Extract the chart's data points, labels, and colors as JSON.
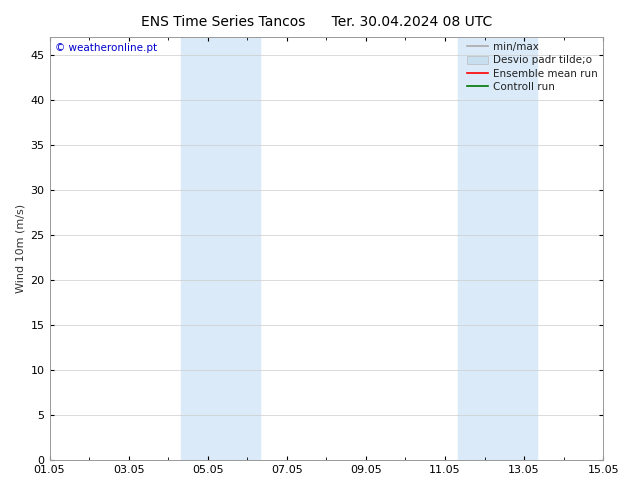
{
  "title_left": "ENS Time Series Tancos",
  "title_right": "Ter. 30.04.2024 08 UTC",
  "ylabel": "Wind 10m (m/s)",
  "watermark": "© weatheronline.pt",
  "watermark_color": "#0000cc",
  "ylim": [
    0,
    47
  ],
  "yticks": [
    0,
    5,
    10,
    15,
    20,
    25,
    30,
    35,
    40,
    45
  ],
  "xtick_labels": [
    "01.05",
    "03.05",
    "05.05",
    "07.05",
    "09.05",
    "11.05",
    "13.05",
    "15.05"
  ],
  "xtick_positions": [
    0,
    2,
    4,
    6,
    8,
    10,
    12,
    14
  ],
  "xlim": [
    0,
    14
  ],
  "shaded_regions": [
    [
      3.33,
      4.67
    ],
    [
      4.67,
      5.33
    ],
    [
      10.33,
      11.67
    ],
    [
      11.67,
      12.33
    ]
  ],
  "shade_color_1": "#daeaf8",
  "shade_color_2": "#daeaf8",
  "bg_color": "#ffffff",
  "grid_color": "#cccccc",
  "legend_items": [
    {
      "label": "min/max",
      "color": "#aaaaaa",
      "lw": 1.2,
      "type": "line"
    },
    {
      "label": "Desvio padr tilde;o",
      "color": "#c8dff0",
      "lw": 8,
      "type": "patch"
    },
    {
      "label": "Ensemble mean run",
      "color": "#ff0000",
      "lw": 1.2,
      "type": "line"
    },
    {
      "label": "Controll run",
      "color": "#007700",
      "lw": 1.2,
      "type": "line"
    }
  ],
  "title_fontsize": 10,
  "axis_fontsize": 8,
  "tick_fontsize": 8,
  "legend_fontsize": 7.5
}
